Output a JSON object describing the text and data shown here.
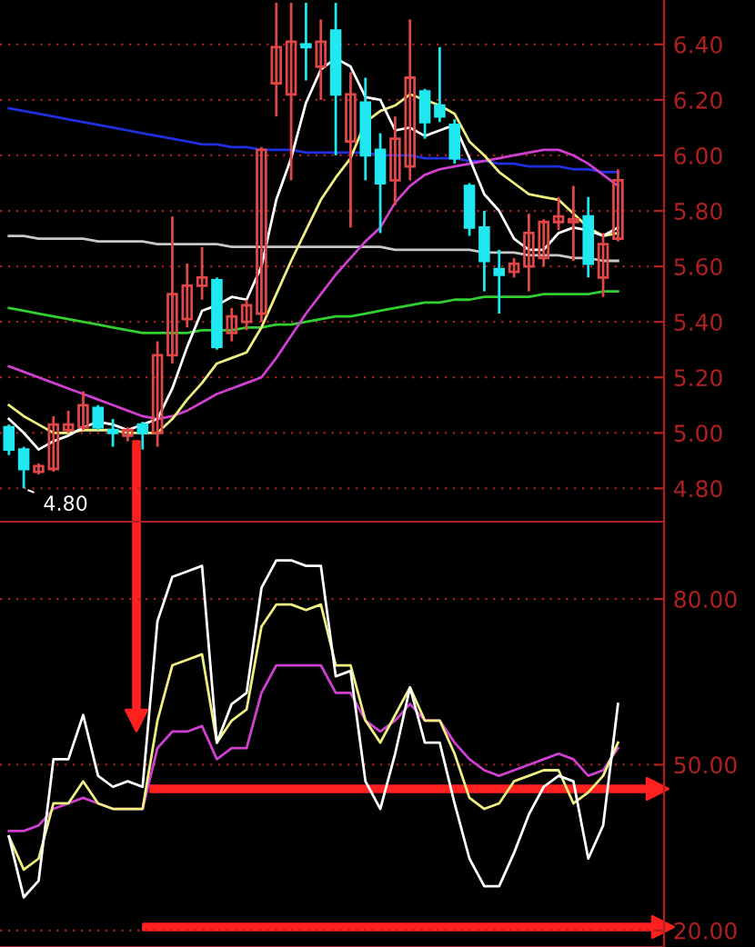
{
  "chart_data": [
    {
      "type": "candlestick",
      "categories": [
        null,
        null,
        null,
        null,
        null,
        null,
        null,
        null,
        null,
        null,
        null,
        null,
        null,
        null,
        null,
        null,
        null,
        null,
        null,
        null,
        null,
        null,
        null,
        null,
        null,
        null,
        null,
        null,
        null,
        null,
        null,
        null,
        null,
        null,
        null,
        null,
        null,
        null,
        null,
        null,
        null,
        null
      ],
      "ohlc": [
        [
          5.02,
          5.03,
          4.92,
          4.94
        ],
        [
          4.94,
          4.95,
          4.8,
          4.87
        ],
        [
          4.86,
          4.89,
          4.85,
          4.88
        ],
        [
          4.87,
          5.06,
          4.86,
          5.03
        ],
        [
          5.01,
          5.08,
          5.0,
          5.03
        ],
        [
          5.02,
          5.15,
          5.01,
          5.1
        ],
        [
          5.09,
          5.1,
          5.01,
          5.02
        ],
        [
          5.01,
          5.05,
          4.95,
          5.0
        ],
        [
          4.99,
          5.02,
          4.97,
          5.01
        ],
        [
          5.03,
          5.04,
          4.94,
          5.0
        ],
        [
          5.0,
          5.33,
          4.95,
          5.28
        ],
        [
          5.28,
          5.78,
          5.25,
          5.5
        ],
        [
          5.41,
          5.61,
          5.38,
          5.53
        ],
        [
          5.53,
          5.67,
          5.48,
          5.56
        ],
        [
          5.55,
          5.56,
          5.3,
          5.31
        ],
        [
          5.36,
          5.45,
          5.33,
          5.42
        ],
        [
          5.4,
          5.48,
          5.37,
          5.46
        ],
        [
          5.43,
          6.03,
          5.4,
          6.02
        ],
        [
          6.26,
          6.55,
          6.14,
          6.39
        ],
        [
          6.22,
          6.55,
          5.91,
          6.41
        ],
        [
          6.4,
          6.55,
          6.27,
          6.39
        ],
        [
          6.32,
          6.49,
          6.2,
          6.41
        ],
        [
          6.45,
          6.55,
          6.0,
          6.22
        ],
        [
          6.05,
          6.3,
          5.74,
          6.22
        ],
        [
          6.19,
          6.28,
          5.91,
          6.0
        ],
        [
          6.02,
          6.08,
          5.72,
          5.9
        ],
        [
          5.91,
          6.14,
          5.82,
          6.06
        ],
        [
          5.96,
          6.49,
          5.91,
          6.28
        ],
        [
          6.23,
          6.24,
          6.06,
          6.12
        ],
        [
          6.18,
          6.39,
          6.12,
          6.14
        ],
        [
          6.11,
          6.13,
          5.97,
          5.99
        ],
        [
          5.89,
          5.9,
          5.71,
          5.74
        ],
        [
          5.74,
          5.8,
          5.51,
          5.62
        ],
        [
          5.59,
          5.66,
          5.43,
          5.57
        ],
        [
          5.58,
          5.63,
          5.56,
          5.61
        ],
        [
          5.6,
          5.79,
          5.51,
          5.72
        ],
        [
          5.63,
          5.77,
          5.6,
          5.76
        ],
        [
          5.76,
          5.85,
          5.73,
          5.78
        ],
        [
          5.76,
          5.89,
          5.62,
          5.77
        ],
        [
          5.78,
          5.85,
          5.56,
          5.61
        ],
        [
          5.56,
          5.72,
          5.49,
          5.68
        ],
        [
          5.7,
          5.95,
          5.69,
          5.91
        ]
      ],
      "series": [
        {
          "type": "line",
          "color": "#2030e0",
          "values": [
            6.17,
            6.16,
            6.15,
            6.14,
            6.13,
            6.12,
            6.11,
            6.1,
            6.09,
            6.08,
            6.07,
            6.06,
            6.05,
            6.04,
            6.04,
            6.03,
            6.03,
            6.02,
            6.02,
            6.02,
            6.01,
            6.01,
            6.01,
            6.01,
            6.01,
            6.0,
            6.0,
            6.0,
            5.99,
            5.99,
            5.99,
            5.98,
            5.98,
            5.97,
            5.97,
            5.96,
            5.96,
            5.96,
            5.95,
            5.95,
            5.94,
            5.94
          ]
        },
        {
          "type": "line",
          "color": "#c8c8c8",
          "values": [
            5.71,
            5.71,
            5.7,
            5.7,
            5.7,
            5.7,
            5.69,
            5.69,
            5.69,
            5.69,
            5.68,
            5.68,
            5.68,
            5.68,
            5.68,
            5.67,
            5.67,
            5.67,
            5.67,
            5.67,
            5.67,
            5.67,
            5.67,
            5.67,
            5.67,
            5.67,
            5.66,
            5.66,
            5.66,
            5.66,
            5.66,
            5.66,
            5.65,
            5.65,
            5.65,
            5.64,
            5.64,
            5.64,
            5.63,
            5.63,
            5.62,
            5.62
          ]
        },
        {
          "type": "line",
          "color": "#30d030",
          "values": [
            5.45,
            5.44,
            5.43,
            5.42,
            5.41,
            5.4,
            5.39,
            5.38,
            5.37,
            5.36,
            5.36,
            5.36,
            5.36,
            5.37,
            5.37,
            5.37,
            5.38,
            5.38,
            5.39,
            5.39,
            5.4,
            5.41,
            5.42,
            5.42,
            5.43,
            5.44,
            5.45,
            5.46,
            5.47,
            5.47,
            5.48,
            5.48,
            5.49,
            5.49,
            5.49,
            5.49,
            5.5,
            5.5,
            5.5,
            5.5,
            5.51,
            5.51
          ]
        },
        {
          "type": "line",
          "color": "#d040d0",
          "values": [
            5.24,
            5.22,
            5.2,
            5.18,
            5.16,
            5.14,
            5.12,
            5.1,
            5.08,
            5.06,
            5.05,
            5.06,
            5.08,
            5.11,
            5.14,
            5.16,
            5.18,
            5.2,
            5.27,
            5.35,
            5.43,
            5.5,
            5.57,
            5.63,
            5.69,
            5.74,
            5.83,
            5.89,
            5.93,
            5.95,
            5.96,
            5.97,
            5.98,
            5.99,
            6.0,
            6.01,
            6.02,
            6.02,
            6.0,
            5.97,
            5.93,
            5.89
          ]
        },
        {
          "type": "line",
          "color": "#f0f080",
          "values": [
            5.1,
            5.06,
            5.03,
            5.0,
            5.0,
            5.01,
            5.01,
            5.01,
            5.0,
            5.0,
            5.0,
            5.05,
            5.12,
            5.18,
            5.25,
            5.27,
            5.29,
            5.38,
            5.5,
            5.62,
            5.73,
            5.84,
            5.92,
            5.99,
            6.12,
            6.16,
            6.18,
            6.22,
            6.2,
            6.18,
            6.15,
            6.05,
            6.0,
            5.94,
            5.9,
            5.86,
            5.85,
            5.84,
            5.79,
            5.74,
            5.71,
            5.72
          ]
        },
        {
          "type": "line",
          "color": "#ffffff",
          "values": [
            5.05,
            5.0,
            4.94,
            4.97,
            4.99,
            5.02,
            5.04,
            5.03,
            5.01,
            5.03,
            5.05,
            5.16,
            5.31,
            5.44,
            5.46,
            5.49,
            5.48,
            5.6,
            5.84,
            5.99,
            6.19,
            6.31,
            6.35,
            6.32,
            6.21,
            6.2,
            6.09,
            6.1,
            6.07,
            6.09,
            6.11,
            5.99,
            5.86,
            5.8,
            5.7,
            5.66,
            5.66,
            5.72,
            5.74,
            5.73,
            5.71,
            5.74
          ]
        }
      ],
      "ylim": [
        4.68,
        6.56
      ],
      "yticks": [
        {
          "value": 4.8,
          "label": "4.80"
        },
        {
          "value": 5.0,
          "label": "5.00"
        },
        {
          "value": 5.2,
          "label": "5.20"
        },
        {
          "value": 5.4,
          "label": "5.40"
        },
        {
          "value": 5.6,
          "label": "5.60"
        },
        {
          "value": 5.8,
          "label": "5.80"
        },
        {
          "value": 6.0,
          "label": "6.00"
        },
        {
          "value": 6.2,
          "label": "6.20"
        },
        {
          "value": 6.4,
          "label": "6.40"
        }
      ],
      "grid": "y",
      "tick_labels": "y",
      "annotations": [
        "4.80"
      ]
    },
    {
      "type": "line",
      "categories": [
        null,
        null,
        null,
        null,
        null,
        null,
        null,
        null,
        null,
        null,
        null,
        null,
        null,
        null,
        null,
        null,
        null,
        null,
        null,
        null,
        null,
        null,
        null,
        null,
        null,
        null,
        null,
        null,
        null,
        null,
        null,
        null,
        null,
        null,
        null,
        null,
        null,
        null,
        null,
        null,
        null,
        null
      ],
      "series": [
        {
          "color": "#d040d0",
          "values": [
            38,
            38,
            39,
            42,
            43,
            44,
            43,
            42,
            42,
            42,
            53,
            56,
            56,
            57,
            51,
            53,
            53,
            63,
            68,
            68,
            68,
            68,
            63,
            63,
            58,
            56,
            58,
            61,
            58,
            58,
            54,
            51,
            49,
            48,
            49,
            50,
            51,
            52,
            51,
            48,
            49,
            53
          ]
        },
        {
          "color": "#f0f080",
          "values": [
            37,
            31,
            33,
            43,
            43,
            47,
            43,
            42,
            42,
            42,
            58,
            68,
            69,
            70,
            54,
            58,
            60,
            75,
            79,
            79,
            78,
            79,
            68,
            68,
            58,
            54,
            59,
            64,
            58,
            58,
            52,
            44,
            42,
            43,
            47,
            48,
            49,
            49,
            43,
            45,
            48,
            54
          ]
        },
        {
          "color": "#ffffff",
          "values": [
            37,
            26,
            29,
            51,
            51,
            59,
            48,
            46,
            47,
            46,
            76,
            84,
            85,
            86,
            54,
            61,
            63,
            82,
            87,
            87,
            86,
            86,
            66,
            67,
            47,
            42,
            52,
            64,
            54,
            54,
            43,
            33,
            28,
            28,
            34,
            41,
            46,
            48,
            47,
            33,
            39,
            61
          ]
        }
      ],
      "ylim": [
        17,
        94
      ],
      "yticks": [
        {
          "value": 20,
          "label": "20.00"
        },
        {
          "value": 50,
          "label": "50.00"
        },
        {
          "value": 80,
          "label": "80.00"
        }
      ],
      "grid": "y",
      "tick_labels": "y"
    }
  ]
}
